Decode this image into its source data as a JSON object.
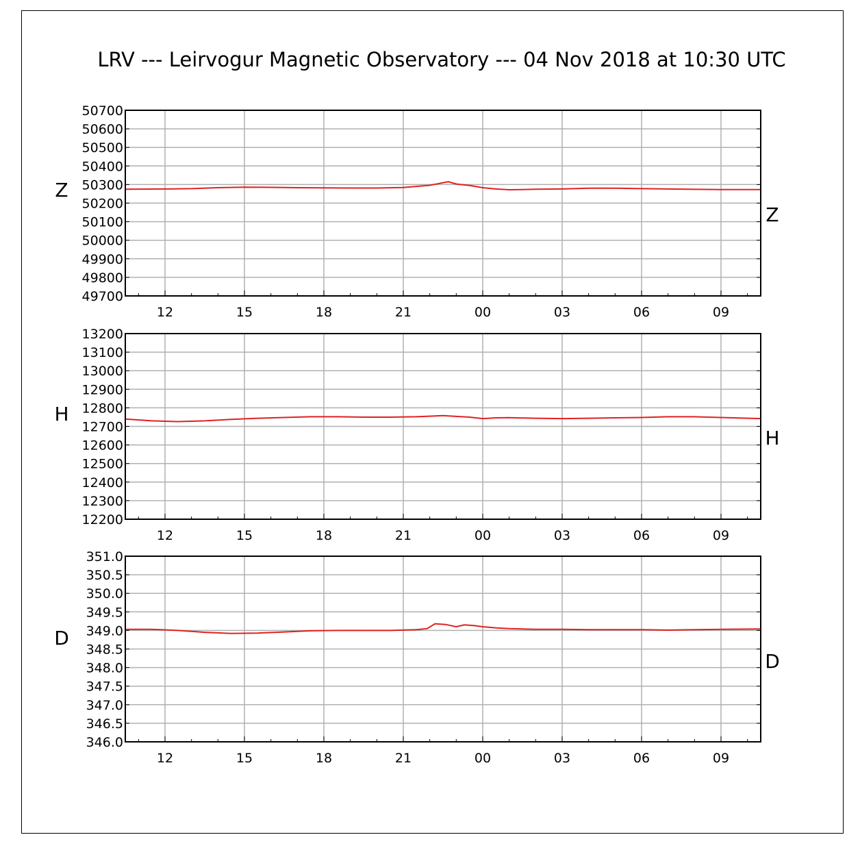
{
  "chart_data": {
    "type": "line",
    "title": "LRV --- Leirvogur Magnetic Observatory --- 04 Nov 2018 at 10:30 UTC",
    "x_range_hours": [
      10.5,
      34.5
    ],
    "x_tick_hours": [
      12,
      15,
      18,
      21,
      24,
      27,
      30,
      33
    ],
    "x_tick_labels": [
      "12",
      "15",
      "18",
      "21",
      "00",
      "03",
      "06",
      "09"
    ],
    "grid": true,
    "line_color": "#e02020",
    "panels": [
      {
        "name": "Z",
        "label_left": "Z",
        "label_right": "Z",
        "ylim": [
          49700,
          50700
        ],
        "y_ticks": [
          50700,
          50600,
          50500,
          50400,
          50300,
          50200,
          50100,
          50000,
          49900,
          49800,
          49700
        ],
        "y_tick_labels": [
          "50700",
          "50600",
          "50500",
          "50400",
          "50300",
          "50200",
          "50100",
          "50000",
          "49900",
          "49800",
          "49700"
        ],
        "x": [
          10.5,
          12,
          13,
          14,
          15,
          16,
          17,
          18,
          19,
          20,
          21,
          22,
          22.7,
          23,
          23.5,
          24,
          24.5,
          25,
          25.5,
          26,
          27,
          28,
          29,
          30,
          31,
          32,
          33,
          34.5
        ],
        "values": [
          50275,
          50276,
          50278,
          50283,
          50286,
          50285,
          50283,
          50282,
          50281,
          50281,
          50284,
          50296,
          50315,
          50303,
          50295,
          50283,
          50276,
          50272,
          50273,
          50275,
          50276,
          50280,
          50280,
          50278,
          50276,
          50274,
          50273,
          50273
        ]
      },
      {
        "name": "H",
        "label_left": "H",
        "label_right": "H",
        "ylim": [
          12200,
          13200
        ],
        "y_ticks": [
          13200,
          13100,
          13000,
          12900,
          12800,
          12700,
          12600,
          12500,
          12400,
          12300,
          12200
        ],
        "y_tick_labels": [
          "13200",
          "13100",
          "13000",
          "12900",
          "12800",
          "12700",
          "12600",
          "12500",
          "12400",
          "12300",
          "12200"
        ],
        "x": [
          10.5,
          11.5,
          12.5,
          13.5,
          14.5,
          15.5,
          16.5,
          17.5,
          18.5,
          19.5,
          20.5,
          21.5,
          22.5,
          23.5,
          24,
          24.5,
          25,
          26,
          27,
          28,
          29,
          30,
          31,
          32,
          33,
          34.5
        ],
        "values": [
          12740,
          12730,
          12726,
          12730,
          12738,
          12744,
          12748,
          12752,
          12752,
          12750,
          12750,
          12752,
          12758,
          12750,
          12742,
          12746,
          12747,
          12744,
          12742,
          12744,
          12746,
          12748,
          12752,
          12752,
          12748,
          12742
        ]
      },
      {
        "name": "D",
        "label_left": "D",
        "label_right": "D",
        "ylim": [
          346.0,
          351.0
        ],
        "y_ticks": [
          351.0,
          350.5,
          350.0,
          349.5,
          349.0,
          348.5,
          348.0,
          347.5,
          347.0,
          346.5,
          346.0
        ],
        "y_tick_labels": [
          "351.0",
          "350.5",
          "350.0",
          "349.5",
          "349.0",
          "348.5",
          "348.0",
          "347.5",
          "347.0",
          "346.5",
          "346.0"
        ],
        "x": [
          10.5,
          11.5,
          12.5,
          13.5,
          14.5,
          15.5,
          16.5,
          17.5,
          18.5,
          19.5,
          20.5,
          21.5,
          21.9,
          22.2,
          22.6,
          23,
          23.3,
          23.7,
          24,
          24.5,
          25,
          26,
          27,
          28,
          29,
          30,
          31,
          32,
          33,
          34.5
        ],
        "values": [
          349.03,
          349.03,
          349.0,
          348.95,
          348.92,
          348.93,
          348.96,
          348.99,
          349.0,
          349.0,
          349.0,
          349.02,
          349.05,
          349.18,
          349.16,
          349.1,
          349.15,
          349.13,
          349.1,
          349.07,
          349.05,
          349.03,
          349.03,
          349.02,
          349.02,
          349.02,
          349.01,
          349.02,
          349.03,
          349.04
        ]
      }
    ]
  }
}
